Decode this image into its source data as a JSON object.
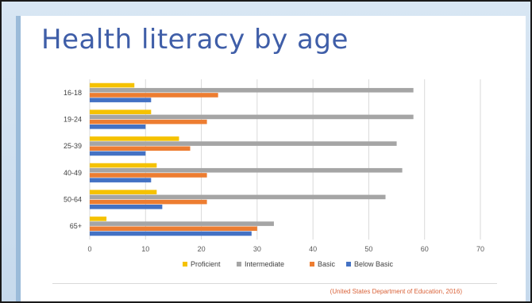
{
  "slide": {
    "title": "Health literacy by age",
    "source": "(United States Department of Education, 2016)"
  },
  "colors": {
    "title": "#3f5ea8",
    "frame": "#c6d9ec",
    "source": "#d9633a"
  },
  "chart_data": {
    "type": "bar",
    "orientation": "horizontal",
    "title": "Health literacy by age",
    "xlabel": "",
    "ylabel": "",
    "categories": [
      "16-18",
      "19-24",
      "25-39",
      "40-49",
      "50-64",
      "65+"
    ],
    "series": [
      {
        "name": "Proficient",
        "color": "#f5c200",
        "values": [
          8,
          11,
          16,
          12,
          12,
          3
        ]
      },
      {
        "name": "Intermediate",
        "color": "#a5a5a5",
        "values": [
          58,
          58,
          55,
          56,
          53,
          33
        ]
      },
      {
        "name": "Basic",
        "color": "#ed7d31",
        "values": [
          23,
          21,
          18,
          21,
          21,
          30
        ]
      },
      {
        "name": "Below Basic",
        "color": "#4472c4",
        "values": [
          11,
          10,
          10,
          11,
          13,
          29
        ]
      }
    ],
    "xlim": [
      0,
      70
    ],
    "xticks": [
      0,
      10,
      20,
      30,
      40,
      50,
      60,
      70
    ],
    "grid": true,
    "legend_position": "bottom"
  }
}
